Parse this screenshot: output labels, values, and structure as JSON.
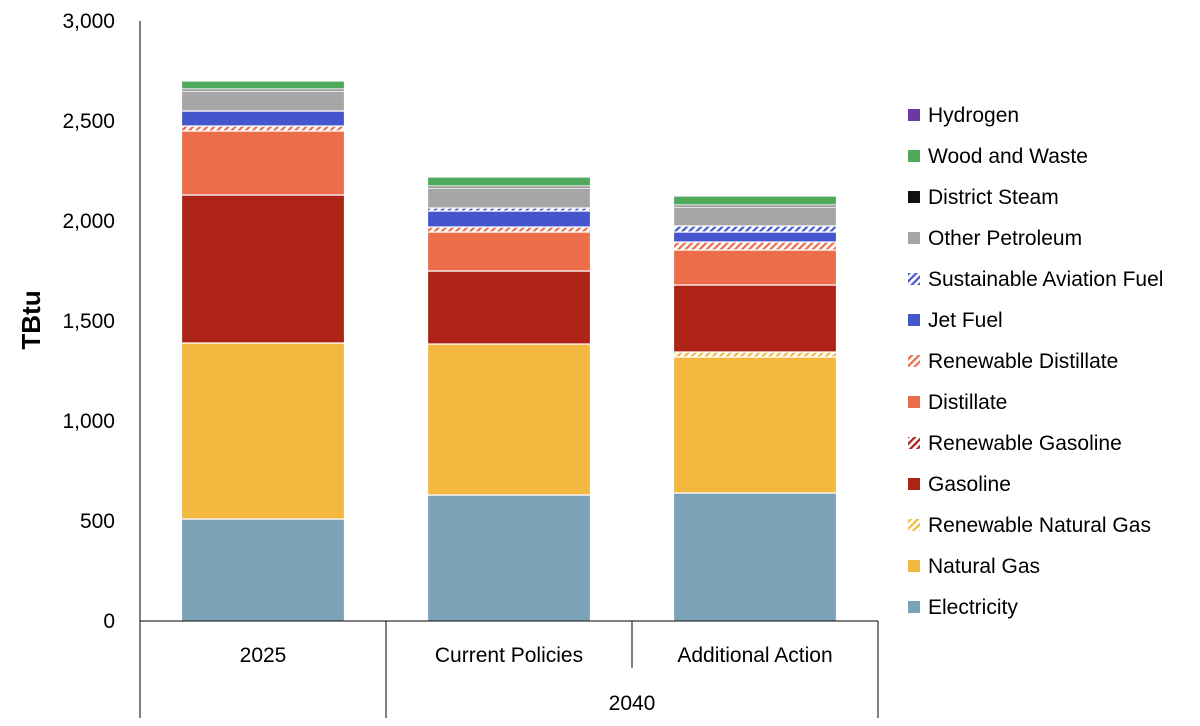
{
  "chart_data": {
    "type": "bar",
    "stacked": true,
    "ylabel": "TBtu",
    "ylim": [
      0,
      3000
    ],
    "yticks": [
      "0",
      "500",
      "1,000",
      "1,500",
      "2,000",
      "2,500",
      "3,000"
    ],
    "ytick_values": [
      0,
      500,
      1000,
      1500,
      2000,
      2500,
      3000
    ],
    "categories": [
      "2025",
      "Current Policies",
      "Additional Action"
    ],
    "category_groups": [
      {
        "label": "",
        "members": [
          "2025"
        ]
      },
      {
        "label": "2040",
        "members": [
          "Current Policies",
          "Additional Action"
        ]
      }
    ],
    "grid": false,
    "legend_position": "right",
    "series": [
      {
        "name": "Electricity",
        "color": "#7ba3b8",
        "pattern": "solid",
        "values": [
          510,
          630,
          640
        ]
      },
      {
        "name": "Natural Gas",
        "color": "#f3b840",
        "pattern": "solid",
        "values": [
          880,
          755,
          680
        ]
      },
      {
        "name": "Renewable Natural Gas",
        "color": "#f3b840",
        "pattern": "hatch",
        "values": [
          0,
          0,
          25
        ]
      },
      {
        "name": "Gasoline",
        "color": "#ad2318",
        "pattern": "solid",
        "values": [
          740,
          365,
          335
        ]
      },
      {
        "name": "Renewable Gasoline",
        "color": "#ad2318",
        "pattern": "hatch",
        "values": [
          0,
          0,
          0
        ]
      },
      {
        "name": "Distillate",
        "color": "#ec6d49",
        "pattern": "solid",
        "values": [
          320,
          195,
          175
        ]
      },
      {
        "name": "Renewable Distillate",
        "color": "#ec6d49",
        "pattern": "hatch",
        "values": [
          25,
          25,
          40
        ]
      },
      {
        "name": "Jet Fuel",
        "color": "#4556cc",
        "pattern": "solid",
        "values": [
          75,
          80,
          50
        ]
      },
      {
        "name": "Sustainable Aviation Fuel",
        "color": "#4556cc",
        "pattern": "hatch",
        "values": [
          0,
          15,
          30
        ]
      },
      {
        "name": "Other Petroleum",
        "color": "#a6a6a6",
        "pattern": "solid",
        "values": [
          100,
          100,
          95
        ]
      },
      {
        "name": "District Steam",
        "color": "#111111",
        "pattern": "solid",
        "values": [
          10,
          10,
          10
        ]
      },
      {
        "name": "Wood and Waste",
        "color": "#4ea95b",
        "pattern": "solid",
        "values": [
          40,
          45,
          45
        ]
      },
      {
        "name": "Hydrogen",
        "color": "#6a3aa0",
        "pattern": "solid",
        "values": [
          0,
          0,
          0
        ]
      }
    ]
  }
}
